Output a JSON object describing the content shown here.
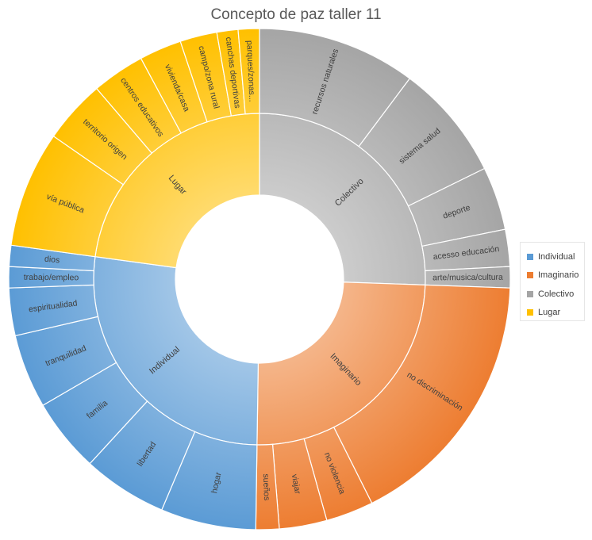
{
  "chart_data": {
    "type": "sunburst",
    "title": "Concepto de paz taller 11",
    "legend_position": "right",
    "categories": [
      {
        "name": "Colectivo",
        "color": "#a5a5a5",
        "children": [
          {
            "name": "recursos naturales",
            "value": 15
          },
          {
            "name": "sistema salud",
            "value": 11
          },
          {
            "name": "deporte",
            "value": 6
          },
          {
            "name": "acesso educación",
            "value": 3.5
          },
          {
            "name": "arte/musica/cultura",
            "value": 2
          }
        ]
      },
      {
        "name": "Imaginario",
        "color": "#ed7d31",
        "children": [
          {
            "name": "no discriminación",
            "value": 25
          },
          {
            "name": "no violencia",
            "value": 4.5
          },
          {
            "name": "viajar",
            "value": 4.5
          },
          {
            "name": "sueños",
            "value": 2.2
          }
        ]
      },
      {
        "name": "Individual",
        "color": "#5b9bd5",
        "children": [
          {
            "name": "hogar",
            "value": 9
          },
          {
            "name": "libertad",
            "value": 8
          },
          {
            "name": "familia",
            "value": 7
          },
          {
            "name": "tranquilidad",
            "value": 7
          },
          {
            "name": "espiritualidad",
            "value": 4.5
          },
          {
            "name": "trabajo/empleo",
            "value": 2
          },
          {
            "name": "dios",
            "value": 2
          }
        ]
      },
      {
        "name": "Lugar",
        "color": "#ffc000",
        "children": [
          {
            "name": "vía pública",
            "value": 11
          },
          {
            "name": "territorio origen",
            "value": 6
          },
          {
            "name": "centros educativos",
            "value": 5
          },
          {
            "name": "vivienda/casa",
            "value": 4
          },
          {
            "name": "campo/zona rural",
            "value": 3.5
          },
          {
            "name": "canchas deportivas",
            "value": 2
          },
          {
            "name": "parques/zonas...",
            "value": 2
          }
        ]
      }
    ]
  },
  "legend": {
    "items": [
      {
        "label": "Individual",
        "color": "#5b9bd5"
      },
      {
        "label": "Imaginario",
        "color": "#ed7d31"
      },
      {
        "label": "Colectivo",
        "color": "#a5a5a5"
      },
      {
        "label": "Lugar",
        "color": "#ffc000"
      }
    ]
  }
}
